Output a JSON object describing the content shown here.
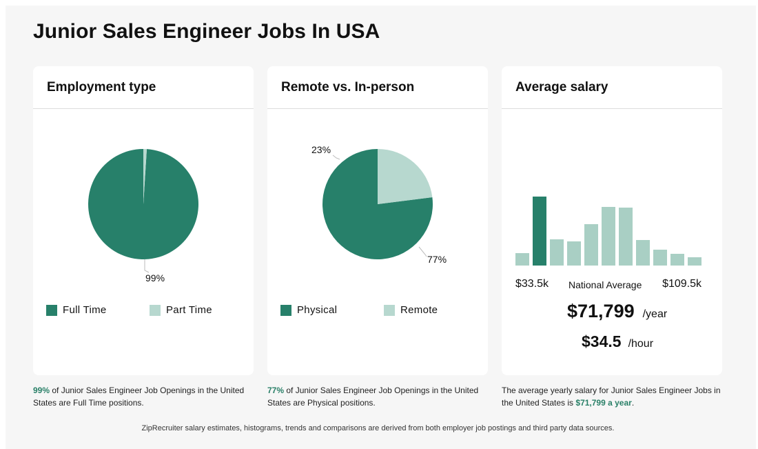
{
  "page": {
    "title": "Junior Sales Engineer Jobs In USA",
    "footer": "ZipRecruiter salary estimates, histograms, trends and comparisons are derived from both employer job postings and third party data sources."
  },
  "colors": {
    "primary": "#27806a",
    "secondary": "#b7d8cf",
    "highlight": "#2a8068"
  },
  "employment": {
    "title": "Employment type",
    "legend": [
      "Full Time",
      "Part Time"
    ],
    "caption": {
      "percent": "99%",
      "text": " of Junior Sales Engineer Job Openings in the United States are Full Time positions."
    }
  },
  "remote": {
    "title": "Remote vs. In-person",
    "legend": [
      "Physical",
      "Remote"
    ],
    "caption": {
      "percent": "77%",
      "text": " of Junior Sales Engineer Job Openings in the United States are Physical positions."
    }
  },
  "salary": {
    "title": "Average salary",
    "range_low": "$33.5k",
    "range_mid": "National Average",
    "range_high": "$109.5k",
    "yearly_value": "$71,799",
    "yearly_unit": "/year",
    "hourly_value": "$34.5",
    "hourly_unit": "/hour",
    "caption": {
      "text": "The average yearly salary for Junior Sales Engineer Jobs in the United States is ",
      "highlight": "$71,799 a year",
      "end": "."
    }
  },
  "chart_data": [
    {
      "type": "pie",
      "slices": [
        {
          "label": "Full Time",
          "value": 99,
          "display": "99%"
        },
        {
          "label": "Part Time",
          "value": 1
        }
      ]
    },
    {
      "type": "pie",
      "slices": [
        {
          "label": "Physical",
          "value": 77,
          "display": "77%"
        },
        {
          "label": "Remote",
          "value": 23,
          "display": "23%"
        }
      ]
    },
    {
      "type": "bar",
      "values": [
        18,
        100,
        38,
        35,
        60,
        85,
        84,
        37,
        23,
        17,
        12
      ],
      "highlight_index": 1,
      "ylim": [
        0,
        100
      ]
    }
  ]
}
